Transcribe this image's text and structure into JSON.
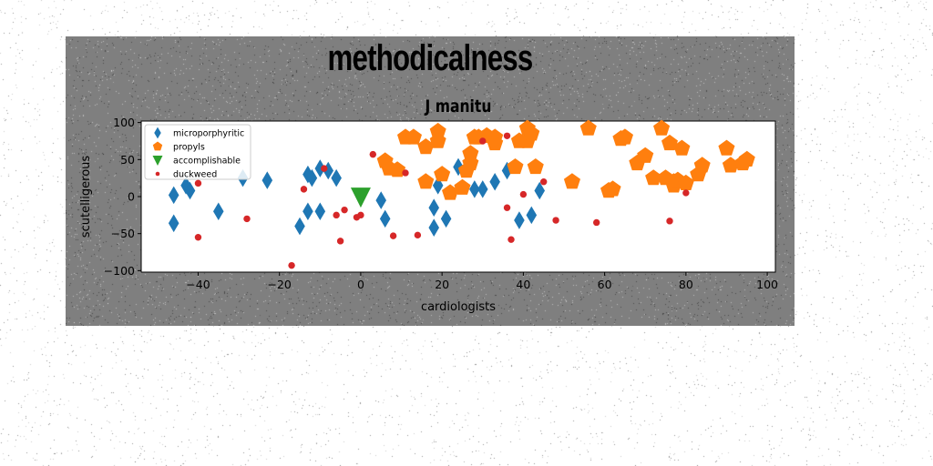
{
  "colors": {
    "figure_bg": "#7f7f7f",
    "axes_bg": "#ffffff",
    "microporphyritic": "#1f77b4",
    "propyls": "#ff7f0e",
    "accomplishable": "#2ca02c",
    "duckweed": "#d62728"
  },
  "chart_data": {
    "type": "scatter",
    "suptitle": "methodicalness",
    "title": "J manitu",
    "xlabel": "cardiologists",
    "ylabel": "scutelligerous",
    "xlim": [
      -54,
      102
    ],
    "ylim": [
      -102,
      102
    ],
    "xticks": [
      -40,
      -20,
      0,
      20,
      40,
      60,
      80,
      100
    ],
    "yticks": [
      -100,
      -50,
      0,
      50,
      100
    ],
    "grid": false,
    "legend_position": "upper-left",
    "series": [
      {
        "name": "microporphyritic",
        "marker": "diamond",
        "color": "#1f77b4",
        "points": [
          [
            -46,
            2
          ],
          [
            -46,
            -36
          ],
          [
            -43,
            15
          ],
          [
            -42,
            8
          ],
          [
            -35,
            -20
          ],
          [
            -29,
            25
          ],
          [
            -23,
            22
          ],
          [
            -15,
            -40
          ],
          [
            -13,
            30
          ],
          [
            -13,
            -20
          ],
          [
            -12,
            25
          ],
          [
            -10,
            38
          ],
          [
            -10,
            -20
          ],
          [
            -8,
            35
          ],
          [
            -6,
            25
          ],
          [
            5,
            -5
          ],
          [
            6,
            -30
          ],
          [
            18,
            -15
          ],
          [
            18,
            -42
          ],
          [
            19,
            15
          ],
          [
            21,
            -30
          ],
          [
            24,
            40
          ],
          [
            28,
            10
          ],
          [
            30,
            10
          ],
          [
            33,
            20
          ],
          [
            36,
            35
          ],
          [
            39,
            -32
          ],
          [
            42,
            -25
          ],
          [
            44,
            8
          ]
        ]
      },
      {
        "name": "propyls",
        "color": "#ff7f0e",
        "marker": "pentagon",
        "points": [
          [
            6,
            48
          ],
          [
            7,
            38
          ],
          [
            9,
            36
          ],
          [
            11,
            80
          ],
          [
            13,
            80
          ],
          [
            16,
            67
          ],
          [
            16,
            20
          ],
          [
            19,
            88
          ],
          [
            19,
            75
          ],
          [
            20,
            30
          ],
          [
            22,
            5
          ],
          [
            25,
            12
          ],
          [
            26,
            35
          ],
          [
            27,
            58
          ],
          [
            27,
            45
          ],
          [
            28,
            80
          ],
          [
            29,
            80
          ],
          [
            31,
            82
          ],
          [
            33,
            80
          ],
          [
            33,
            72
          ],
          [
            38,
            40
          ],
          [
            39,
            75
          ],
          [
            41,
            92
          ],
          [
            41,
            75
          ],
          [
            42,
            85
          ],
          [
            43,
            40
          ],
          [
            52,
            20
          ],
          [
            56,
            92
          ],
          [
            61,
            8
          ],
          [
            62,
            10
          ],
          [
            64,
            78
          ],
          [
            65,
            80
          ],
          [
            68,
            45
          ],
          [
            70,
            55
          ],
          [
            72,
            25
          ],
          [
            74,
            92
          ],
          [
            75,
            25
          ],
          [
            76,
            72
          ],
          [
            77,
            15
          ],
          [
            77,
            20
          ],
          [
            78,
            22
          ],
          [
            79,
            65
          ],
          [
            80,
            18
          ],
          [
            83,
            30
          ],
          [
            84,
            42
          ],
          [
            90,
            65
          ],
          [
            91,
            42
          ],
          [
            94,
            45
          ],
          [
            95,
            50
          ]
        ]
      },
      {
        "name": "accomplishable",
        "color": "#2ca02c",
        "marker": "triangle-down",
        "points": [
          [
            0,
            0
          ]
        ]
      },
      {
        "name": "duckweed",
        "color": "#d62728",
        "marker": "circle",
        "points": [
          [
            -40,
            18
          ],
          [
            -40,
            -55
          ],
          [
            -28,
            -30
          ],
          [
            -17,
            -93
          ],
          [
            -14,
            10
          ],
          [
            -9,
            38
          ],
          [
            -6,
            -25
          ],
          [
            -5,
            -60
          ],
          [
            -4,
            -18
          ],
          [
            -1,
            -28
          ],
          [
            0,
            -25
          ],
          [
            3,
            57
          ],
          [
            8,
            -53
          ],
          [
            11,
            32
          ],
          [
            14,
            -52
          ],
          [
            30,
            75
          ],
          [
            36,
            82
          ],
          [
            36,
            -15
          ],
          [
            37,
            -58
          ],
          [
            40,
            3
          ],
          [
            45,
            20
          ],
          [
            48,
            -32
          ],
          [
            58,
            -35
          ],
          [
            76,
            -33
          ],
          [
            80,
            5
          ]
        ]
      }
    ]
  }
}
